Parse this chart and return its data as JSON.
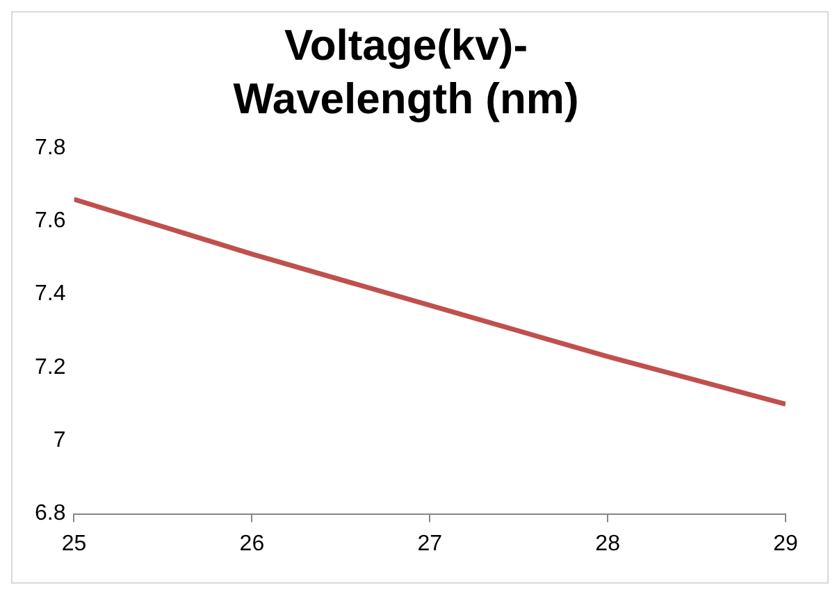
{
  "chart_data": {
    "type": "line",
    "title": "Voltage(kv)- Wavelength (nm)",
    "x": [
      25,
      26,
      27,
      28,
      29
    ],
    "series": [
      {
        "color": "#c0504d",
        "values": [
          7.66,
          7.51,
          7.37,
          7.23,
          7.1
        ]
      }
    ],
    "xlim": [
      25,
      29
    ],
    "xticks": [
      25,
      26,
      27,
      28,
      29
    ],
    "ylim": [
      6.8,
      7.8
    ],
    "yticks": [
      6.8,
      7,
      7.2,
      7.4,
      7.6,
      7.8
    ],
    "grid": false,
    "legend": false,
    "marker": "none",
    "line_style": "solid"
  }
}
